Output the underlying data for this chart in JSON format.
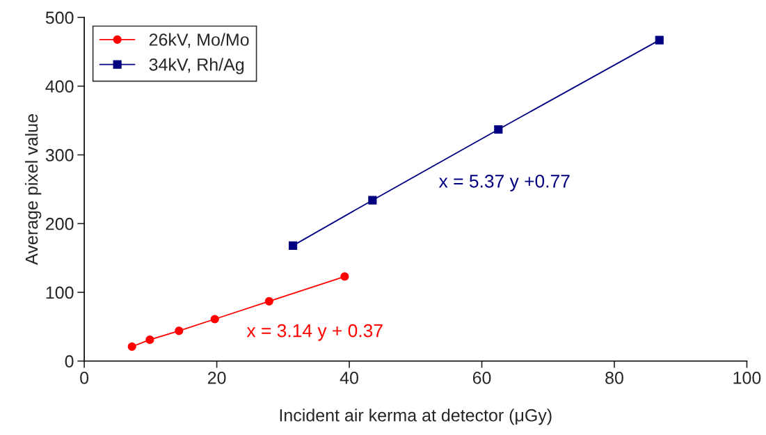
{
  "chart_data": {
    "type": "line",
    "xlabel": "Incident air kerma at detector (μGy)",
    "ylabel": "Average pixel value",
    "xlim": [
      0,
      100
    ],
    "xticks": [
      0,
      20,
      40,
      60,
      80,
      100
    ],
    "ylim": [
      0,
      500
    ],
    "yticks": [
      0,
      100,
      200,
      300,
      400,
      500
    ],
    "grid": false,
    "legend": "top left",
    "line_style": "solid",
    "series": [
      {
        "name": "26kV, Mo/Mo",
        "color": "#ff0000",
        "marker": "circle",
        "x": [
          7.2,
          9.9,
          14.3,
          19.7,
          27.9,
          39.3
        ],
        "values": [
          21,
          31,
          44,
          61,
          87,
          123
        ]
      },
      {
        "name": "34kV, Rh/Ag",
        "color": "#000080",
        "marker": "square",
        "x": [
          31.5,
          43.5,
          62.5,
          86.8
        ],
        "values": [
          168,
          234,
          337,
          467
        ]
      }
    ],
    "annotations": [
      "x = 3.14 y + 0.37",
      "x = 5.37 y +0.77"
    ]
  }
}
